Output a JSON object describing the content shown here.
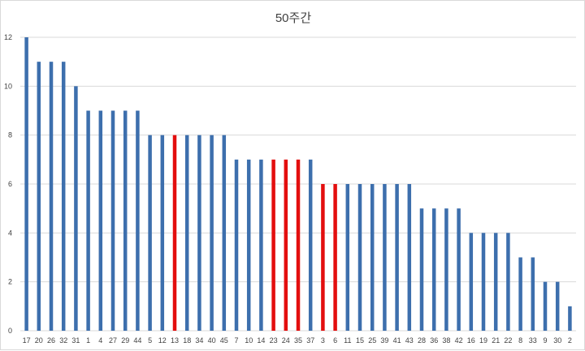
{
  "chart_data": {
    "type": "bar",
    "title": "50주간",
    "xlabel": "",
    "ylabel": "",
    "ylim": [
      0,
      12
    ],
    "yticks": [
      0,
      2,
      4,
      6,
      8,
      10,
      12
    ],
    "grid": true,
    "legend": "none",
    "categories": [
      "17",
      "20",
      "26",
      "32",
      "31",
      "1",
      "4",
      "27",
      "29",
      "44",
      "5",
      "12",
      "13",
      "18",
      "34",
      "40",
      "45",
      "7",
      "10",
      "14",
      "23",
      "24",
      "35",
      "37",
      "3",
      "6",
      "11",
      "15",
      "25",
      "39",
      "41",
      "43",
      "28",
      "36",
      "38",
      "42",
      "16",
      "19",
      "21",
      "22",
      "8",
      "33",
      "9",
      "30",
      "2"
    ],
    "values": [
      12,
      11,
      11,
      11,
      10,
      9,
      9,
      9,
      9,
      9,
      8,
      8,
      8,
      8,
      8,
      8,
      8,
      7,
      7,
      7,
      7,
      7,
      7,
      7,
      6,
      6,
      6,
      6,
      6,
      6,
      6,
      6,
      5,
      5,
      5,
      5,
      4,
      4,
      4,
      4,
      3,
      3,
      2,
      2,
      1
    ],
    "highlighted": [
      "13",
      "23",
      "24",
      "35",
      "3",
      "6"
    ],
    "colors": {
      "bar": "#3d6fad",
      "highlight": "#e30e0e",
      "grid": "#d9d9d9",
      "text": "#404040"
    }
  }
}
